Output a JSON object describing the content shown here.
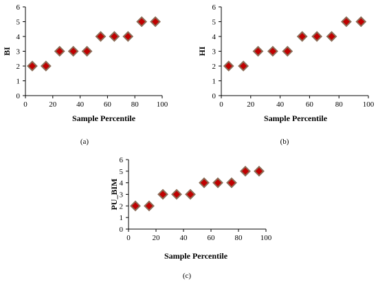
{
  "chart_data": [
    {
      "type": "scatter",
      "panel_label": "(a)",
      "xlabel": "Sample Percentile",
      "ylabel": "BI",
      "xlim": [
        0,
        100
      ],
      "ylim": [
        0,
        6
      ],
      "x_ticks": [
        0,
        20,
        40,
        60,
        80,
        100
      ],
      "y_ticks": [
        0,
        1,
        2,
        3,
        4,
        5,
        6
      ],
      "x_tick_labels": [
        "0",
        "20",
        "40",
        "60",
        "80",
        "100"
      ],
      "y_tick_labels": [
        "0",
        "1",
        "2",
        "3",
        "4",
        "5",
        "6"
      ],
      "marker_color": "#C00000",
      "marker_edge": "#8B6D58",
      "points": [
        {
          "x": 5,
          "y": 2
        },
        {
          "x": 15,
          "y": 2
        },
        {
          "x": 25,
          "y": 3
        },
        {
          "x": 35,
          "y": 3
        },
        {
          "x": 45,
          "y": 3
        },
        {
          "x": 55,
          "y": 4
        },
        {
          "x": 65,
          "y": 4
        },
        {
          "x": 75,
          "y": 4
        },
        {
          "x": 85,
          "y": 5
        },
        {
          "x": 95,
          "y": 5
        }
      ]
    },
    {
      "type": "scatter",
      "panel_label": "(b)",
      "xlabel": "Sample Percentile",
      "ylabel": "HI",
      "xlim": [
        0,
        100
      ],
      "ylim": [
        0,
        6
      ],
      "x_ticks": [
        0,
        20,
        40,
        60,
        80,
        100
      ],
      "y_ticks": [
        0,
        1,
        2,
        3,
        4,
        5,
        6
      ],
      "x_tick_labels": [
        "0",
        "20",
        "40",
        "60",
        "80",
        "100"
      ],
      "y_tick_labels": [
        "0",
        "1",
        "2",
        "3",
        "4",
        "5",
        "6"
      ],
      "marker_color": "#C00000",
      "marker_edge": "#8B6D58",
      "points": [
        {
          "x": 5,
          "y": 2
        },
        {
          "x": 15,
          "y": 2
        },
        {
          "x": 25,
          "y": 3
        },
        {
          "x": 35,
          "y": 3
        },
        {
          "x": 45,
          "y": 3
        },
        {
          "x": 55,
          "y": 4
        },
        {
          "x": 65,
          "y": 4
        },
        {
          "x": 75,
          "y": 4
        },
        {
          "x": 85,
          "y": 5
        },
        {
          "x": 95,
          "y": 5
        }
      ]
    },
    {
      "type": "scatter",
      "panel_label": "(c)",
      "xlabel": "Sample Percentile",
      "ylabel": "PU_BIM",
      "xlim": [
        0,
        100
      ],
      "ylim": [
        0,
        6
      ],
      "x_ticks": [
        0,
        20,
        40,
        60,
        80,
        100
      ],
      "y_ticks": [
        0,
        1,
        2,
        3,
        4,
        5,
        6
      ],
      "x_tick_labels": [
        "0",
        "20",
        "40",
        "60",
        "80",
        "100"
      ],
      "y_tick_labels": [
        "0",
        "1",
        "2",
        "3",
        "4",
        "5",
        "6"
      ],
      "marker_color": "#C00000",
      "marker_edge": "#8B6D58",
      "points": [
        {
          "x": 5,
          "y": 2
        },
        {
          "x": 15,
          "y": 2
        },
        {
          "x": 25,
          "y": 3
        },
        {
          "x": 35,
          "y": 3
        },
        {
          "x": 45,
          "y": 3
        },
        {
          "x": 55,
          "y": 4
        },
        {
          "x": 65,
          "y": 4
        },
        {
          "x": 75,
          "y": 4
        },
        {
          "x": 85,
          "y": 5
        },
        {
          "x": 95,
          "y": 5
        }
      ]
    }
  ]
}
